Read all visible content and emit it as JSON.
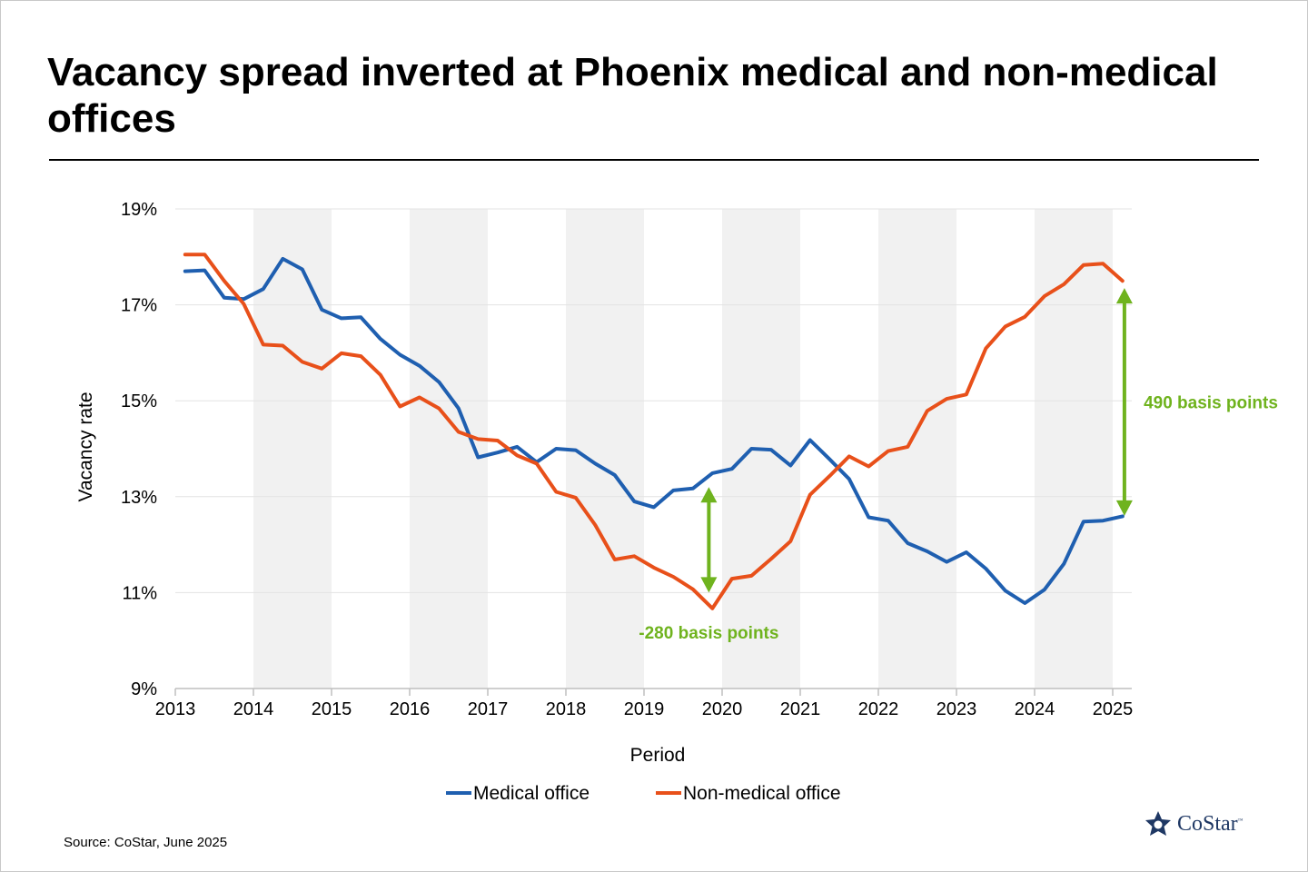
{
  "title": "Vacancy spread inverted at Phoenix medical and non-medical offices",
  "source": "Source: CoStar, June 2025",
  "logo": {
    "text": "CoStar",
    "tm": "™"
  },
  "colors": {
    "medical": "#1f5fb0",
    "nonmedical": "#e8501a",
    "annotation": "#6fb31e",
    "band": "#f1f1f1",
    "grid": "#e3e3e3"
  },
  "chart_data": {
    "type": "line",
    "title": "Vacancy spread inverted at Phoenix medical and non-medical offices",
    "xlabel": "Period",
    "ylabel": "Vacancy rate",
    "ylim": [
      9,
      19
    ],
    "xlim": [
      2013,
      2025.2
    ],
    "y_ticks": [
      9,
      11,
      13,
      15,
      17,
      19
    ],
    "y_tick_labels": [
      "9%",
      "11%",
      "13%",
      "15%",
      "17%",
      "19%"
    ],
    "x_ticks": [
      2013,
      2014,
      2015,
      2016,
      2017,
      2018,
      2019,
      2020,
      2021,
      2022,
      2023,
      2024,
      2025
    ],
    "x_tick_labels": [
      "2013",
      "2014",
      "2015",
      "2016",
      "2017",
      "2018",
      "2019",
      "2020",
      "2021",
      "2022",
      "2023",
      "2024",
      "2025"
    ],
    "shaded_years": [
      2014,
      2016,
      2018,
      2020,
      2022,
      2024
    ],
    "legend_position": "bottom-center",
    "series": [
      {
        "name": "Medical office",
        "start": 2013.125,
        "step": 0.25,
        "values": [
          17.7,
          17.72,
          17.15,
          17.12,
          17.33,
          17.96,
          17.74,
          16.9,
          16.72,
          16.74,
          16.29,
          15.96,
          15.73,
          15.39,
          14.84,
          13.82,
          13.92,
          14.04,
          13.72,
          14.0,
          13.97,
          13.69,
          13.45,
          12.9,
          12.78,
          13.13,
          13.17,
          13.49,
          13.58,
          14.0,
          13.98,
          13.65,
          14.18,
          13.78,
          13.37,
          12.57,
          12.5,
          12.03,
          11.86,
          11.64,
          11.84,
          11.5,
          11.04,
          10.78,
          11.06,
          11.6,
          12.48,
          12.5,
          12.59
        ]
      },
      {
        "name": "Non-medical office",
        "start": 2013.125,
        "step": 0.25,
        "values": [
          18.05,
          18.05,
          17.5,
          17.02,
          16.17,
          16.15,
          15.81,
          15.67,
          15.99,
          15.93,
          15.54,
          14.88,
          15.07,
          14.84,
          14.35,
          14.2,
          14.17,
          13.86,
          13.69,
          13.1,
          12.98,
          12.41,
          11.69,
          11.76,
          11.52,
          11.33,
          11.07,
          10.67,
          11.29,
          11.35,
          11.7,
          12.07,
          13.04,
          13.43,
          13.84,
          13.63,
          13.95,
          14.04,
          14.79,
          15.04,
          15.13,
          16.09,
          16.55,
          16.75,
          17.18,
          17.43,
          17.83,
          17.86,
          17.5
        ]
      }
    ],
    "annotations": [
      {
        "label": "-280 basis points",
        "x": 2019.83,
        "y_from": 11.0,
        "y_to": 13.2
      },
      {
        "label": "490 basis points",
        "x": 2025.15,
        "y_from": 12.6,
        "y_to": 17.35
      }
    ]
  }
}
